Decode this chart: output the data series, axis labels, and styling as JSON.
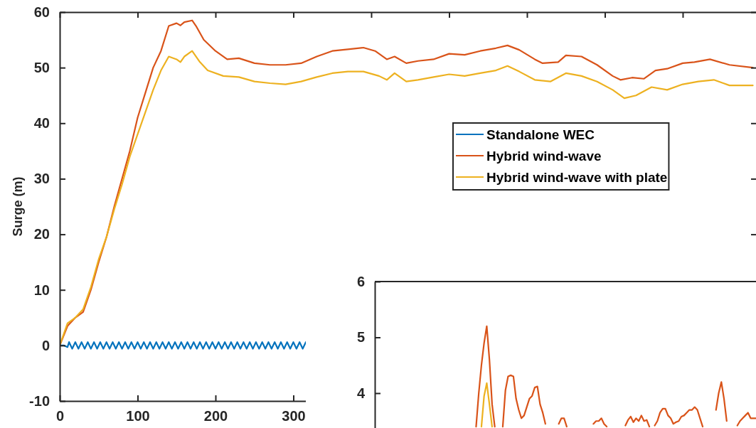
{
  "chart_data": [
    {
      "type": "line",
      "ylabel": "Surge (m)",
      "xlim": [
        0,
        895
      ],
      "ylim": [
        -10,
        60
      ],
      "xticks": [
        0,
        100,
        200,
        300,
        {
          "value": 400,
          "label": null
        },
        {
          "value": 500,
          "label": null
        },
        {
          "value": 600,
          "label": null
        },
        {
          "value": 700,
          "label": null
        },
        {
          "value": 800,
          "label": null
        }
      ],
      "yticks": [
        -10,
        0,
        10,
        20,
        30,
        40,
        50,
        60
      ],
      "legend": "right",
      "series": [
        {
          "name": "Standalone WEC",
          "color": "#0072bd",
          "x": [
            0,
            5,
            10,
            12,
            16,
            20,
            24,
            28,
            32,
            36,
            40,
            44,
            48,
            52,
            56,
            60,
            64,
            68,
            72,
            76,
            80,
            84,
            88,
            92,
            96,
            100,
            104,
            108,
            112,
            116,
            120,
            124,
            128,
            132,
            136,
            140,
            144,
            148,
            152,
            156,
            160,
            164,
            168,
            172,
            176,
            180,
            184,
            188,
            192,
            196,
            200,
            204,
            208,
            212,
            216,
            220,
            224,
            228,
            232,
            236,
            240,
            244,
            248,
            252,
            256,
            260,
            264,
            268,
            272,
            276,
            280,
            284,
            288,
            292,
            296,
            300,
            304,
            308,
            312,
            316
          ],
          "values": [
            0,
            0,
            -0.3,
            0.6,
            -0.6,
            0.6,
            -0.6,
            0.6,
            -0.6,
            0.6,
            -0.6,
            0.6,
            -0.6,
            0.6,
            -0.6,
            0.6,
            -0.6,
            0.6,
            -0.6,
            0.6,
            -0.6,
            0.6,
            -0.6,
            0.6,
            -0.6,
            0.6,
            -0.6,
            0.6,
            -0.6,
            0.6,
            -0.6,
            0.6,
            -0.6,
            0.6,
            -0.6,
            0.6,
            -0.6,
            0.6,
            -0.6,
            0.6,
            -0.6,
            0.6,
            -0.6,
            0.6,
            -0.6,
            0.6,
            -0.6,
            0.6,
            -0.6,
            0.6,
            -0.6,
            0.6,
            -0.6,
            0.6,
            -0.6,
            0.6,
            -0.6,
            0.6,
            -0.6,
            0.6,
            -0.6,
            0.6,
            -0.6,
            0.6,
            -0.6,
            0.6,
            -0.6,
            0.6,
            -0.6,
            0.6,
            -0.6,
            0.6,
            -0.6,
            0.6,
            -0.6,
            0.6,
            -0.6,
            0.6,
            -0.6,
            0.6
          ]
        },
        {
          "name": "Hybrid wind-wave",
          "color": "#d95319",
          "x": [
            0,
            10,
            20,
            30,
            40,
            50,
            60,
            70,
            80,
            90,
            100,
            110,
            120,
            130,
            140,
            150,
            155,
            160,
            170,
            175,
            185,
            200,
            215,
            230,
            250,
            270,
            290,
            310,
            330,
            350,
            370,
            390,
            405,
            420,
            430,
            445,
            460,
            480,
            500,
            520,
            540,
            560,
            575,
            590,
            610,
            620,
            640,
            650,
            670,
            690,
            710,
            720,
            735,
            750,
            765,
            780,
            800,
            815,
            835,
            860,
            890
          ],
          "values": [
            0,
            3.5,
            5,
            6,
            10,
            15,
            19.5,
            25,
            30,
            35,
            41,
            45.5,
            50,
            53,
            57.5,
            58,
            57.6,
            58.2,
            58.5,
            57.5,
            55,
            53,
            51.5,
            51.7,
            50.8,
            50.5,
            50.5,
            50.8,
            52,
            53,
            53.3,
            53.6,
            53,
            51.5,
            52,
            50.8,
            51.2,
            51.5,
            52.5,
            52.3,
            53,
            53.5,
            54,
            53.2,
            51.5,
            50.8,
            51,
            52.2,
            52,
            50.5,
            48.5,
            47.8,
            48.2,
            48,
            49.5,
            49.8,
            50.8,
            51,
            51.5,
            50.5,
            50
          ]
        },
        {
          "name": "Hybrid wind-wave with plate",
          "color": "#edb120",
          "x": [
            0,
            10,
            20,
            30,
            40,
            50,
            60,
            70,
            80,
            90,
            100,
            110,
            120,
            130,
            140,
            150,
            155,
            160,
            170,
            180,
            190,
            210,
            230,
            250,
            270,
            290,
            310,
            330,
            350,
            370,
            390,
            410,
            420,
            430,
            445,
            460,
            480,
            500,
            520,
            540,
            560,
            575,
            590,
            610,
            630,
            650,
            670,
            690,
            710,
            725,
            740,
            760,
            780,
            800,
            820,
            840,
            860,
            890
          ],
          "values": [
            0,
            4,
            5,
            6.5,
            10.5,
            15.5,
            19.5,
            24.5,
            29,
            34,
            38,
            42,
            46,
            49.5,
            52,
            51.5,
            51,
            52,
            53,
            51,
            49.5,
            48.5,
            48.3,
            47.5,
            47.2,
            47,
            47.5,
            48.3,
            49,
            49.3,
            49.3,
            48.5,
            47.8,
            49,
            47.5,
            47.8,
            48.3,
            48.8,
            48.5,
            49,
            49.5,
            50.3,
            49.3,
            47.8,
            47.5,
            49,
            48.5,
            47.5,
            46,
            44.5,
            45,
            46.5,
            46,
            47,
            47.5,
            47.8,
            46.8,
            46.8
          ]
        }
      ]
    },
    {
      "type": "line",
      "categories": [
        null,
        null,
        null,
        null,
        null,
        null,
        null,
        null,
        null,
        null,
        null,
        null,
        null,
        null,
        null,
        null,
        null,
        null,
        null,
        null,
        null,
        null,
        null,
        null,
        null,
        null,
        null,
        null,
        null,
        null,
        null,
        null,
        null,
        null,
        null,
        null,
        null,
        null,
        null,
        null,
        null,
        null,
        null,
        null,
        null,
        null,
        null,
        null,
        null,
        null,
        null,
        null,
        null,
        null,
        null,
        null,
        null,
        null,
        null,
        null,
        null,
        null,
        null,
        null,
        null,
        null,
        null,
        null,
        null,
        null,
        null,
        null,
        null,
        null,
        null,
        null,
        null,
        null,
        null,
        null,
        null,
        null,
        null,
        null,
        null,
        null,
        null,
        null,
        null,
        null,
        null,
        null,
        null,
        null,
        null,
        null,
        null,
        null,
        null,
        null,
        null,
        null,
        null,
        null,
        null,
        null,
        null,
        null,
        null,
        null,
        null,
        null,
        null,
        null,
        null,
        null,
        null,
        null,
        null,
        null,
        null,
        null,
        null,
        null,
        null,
        null,
        null,
        null,
        null,
        null,
        null,
        null,
        null,
        null,
        null,
        null,
        null,
        null,
        null,
        null,
        null,
        null,
        null,
        null
      ],
      "ylim": [
        3.35,
        6
      ],
      "yticks": [
        4,
        5,
        6
      ],
      "series": [
        {
          "color": "#d95319",
          "values": [
            null,
            null,
            null,
            null,
            null,
            null,
            null,
            null,
            null,
            null,
            null,
            null,
            null,
            null,
            null,
            null,
            null,
            null,
            null,
            null,
            null,
            null,
            null,
            null,
            null,
            null,
            null,
            null,
            null,
            null,
            null,
            null,
            null,
            null,
            null,
            null,
            null,
            null,
            3.4,
            4.0,
            4.5,
            4.9,
            5.2,
            4.6,
            3.8,
            3.4,
            null,
            null,
            3.4,
            4.05,
            4.3,
            4.32,
            4.3,
            3.9,
            3.7,
            3.55,
            3.6,
            3.75,
            3.9,
            3.95,
            4.1,
            4.12,
            3.8,
            3.65,
            3.45,
            null,
            null,
            null,
            null,
            3.45,
            3.55,
            3.55,
            3.4,
            null,
            null,
            null,
            null,
            null,
            null,
            null,
            null,
            null,
            3.45,
            3.5,
            3.5,
            3.55,
            3.45,
            3.4,
            null,
            null,
            null,
            null,
            null,
            null,
            3.42,
            3.52,
            3.58,
            3.48,
            3.55,
            3.5,
            3.6,
            3.5,
            3.52,
            3.4,
            null,
            3.42,
            3.5,
            3.65,
            3.72,
            3.72,
            3.6,
            3.55,
            3.45,
            3.48,
            3.5,
            3.58,
            3.6,
            3.65,
            3.7,
            3.7,
            3.75,
            3.7,
            3.55,
            3.4,
            null,
            null,
            null,
            null,
            3.7,
            4.0,
            4.2,
            3.9,
            3.5,
            null,
            null,
            null,
            3.42,
            3.5,
            3.55,
            3.6,
            3.65,
            3.55,
            3.55,
            3.55
          ]
        },
        {
          "color": "#edb120",
          "values": [
            null,
            null,
            null,
            null,
            null,
            null,
            null,
            null,
            null,
            null,
            null,
            null,
            null,
            null,
            null,
            null,
            null,
            null,
            null,
            null,
            null,
            null,
            null,
            null,
            null,
            null,
            null,
            null,
            null,
            null,
            null,
            null,
            null,
            null,
            null,
            null,
            null,
            null,
            null,
            null,
            3.4,
            3.95,
            4.18,
            3.8,
            3.4,
            null,
            null,
            null,
            null,
            null,
            null,
            null,
            null,
            null,
            null,
            null,
            null,
            null,
            null,
            null,
            null,
            null,
            null,
            null,
            null,
            null,
            null,
            null,
            null,
            null,
            null,
            null,
            null,
            null,
            null,
            null,
            null,
            null,
            null,
            null,
            null,
            null,
            null,
            null,
            null,
            null,
            null,
            null,
            null,
            null,
            null,
            null,
            null,
            null,
            null,
            null,
            null,
            null,
            null,
            null,
            null,
            null,
            null,
            null,
            null,
            null,
            null,
            null,
            null,
            null,
            null,
            null,
            null,
            null,
            null,
            null,
            null,
            null,
            null,
            null,
            null,
            null,
            null,
            null,
            null,
            null,
            null,
            null,
            null,
            null,
            null,
            null,
            null,
            null,
            null,
            null,
            null,
            null,
            null,
            null,
            null,
            null,
            null,
            null
          ]
        }
      ]
    }
  ]
}
